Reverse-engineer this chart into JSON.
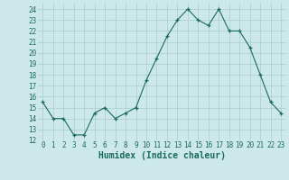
{
  "x": [
    0,
    1,
    2,
    3,
    4,
    5,
    6,
    7,
    8,
    9,
    10,
    11,
    12,
    13,
    14,
    15,
    16,
    17,
    18,
    19,
    20,
    21,
    22,
    23
  ],
  "y": [
    15.5,
    14.0,
    14.0,
    12.5,
    12.5,
    14.5,
    15.0,
    14.0,
    14.5,
    15.0,
    17.5,
    19.5,
    21.5,
    23.0,
    24.0,
    23.0,
    22.5,
    24.0,
    22.0,
    22.0,
    20.5,
    18.0,
    15.5,
    14.5
  ],
  "xlabel": "Humidex (Indice chaleur)",
  "ylim": [
    12,
    24.5
  ],
  "xlim": [
    -0.5,
    23.5
  ],
  "yticks": [
    12,
    13,
    14,
    15,
    16,
    17,
    18,
    19,
    20,
    21,
    22,
    23,
    24
  ],
  "xticks": [
    0,
    1,
    2,
    3,
    4,
    5,
    6,
    7,
    8,
    9,
    10,
    11,
    12,
    13,
    14,
    15,
    16,
    17,
    18,
    19,
    20,
    21,
    22,
    23
  ],
  "line_color": "#1a6b5a",
  "marker_color": "#1a6b5a",
  "bg_color": "#cce8e8",
  "grid_color": "#aacccc",
  "label_color": "#1a6b5a",
  "tick_fontsize": 5.5,
  "xlabel_fontsize": 7.0
}
